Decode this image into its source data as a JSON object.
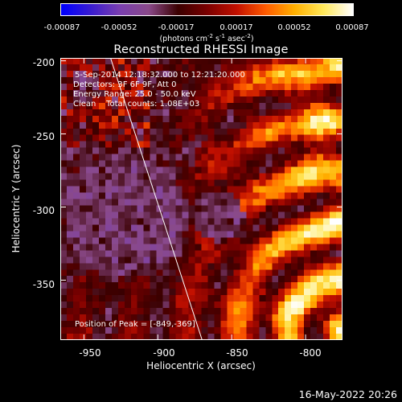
{
  "colorbar": {
    "tick_labels": [
      "-0.00087",
      "-0.00052",
      "-0.00017",
      "0.00017",
      "0.00052",
      "0.00087"
    ],
    "units_label": "(photons cm-2 s-1 asec-2)",
    "range": [
      -0.00087,
      0.00087
    ],
    "colormap": [
      "#0000ff",
      "#3a1cd0",
      "#7a3fb0",
      "#8a4a8a",
      "#3a0000",
      "#7a0000",
      "#c21000",
      "#ff5a00",
      "#ffb000",
      "#ffe85a",
      "#ffffff"
    ]
  },
  "title": "Reconstructed RHESSI Image",
  "info": {
    "time": "5-Sep-2014 12:18:32.000 to 12:21:20.000",
    "detectors": "Detectors: 3F 6F 9F, Att 0",
    "energy": "Energy Range: 25.0 - 50.0 keV",
    "clean": "Clean    Total counts: 1.08E+03",
    "peak": "Position of Peak = [-849,-369]"
  },
  "axes": {
    "xlabel": "Heliocentric X (arcsec)",
    "ylabel": "Heliocentric Y (arcsec)",
    "xlim": [
      -966,
      -775
    ],
    "ylim": [
      -391,
      -198
    ],
    "x_ticks": [
      "-950",
      "-900",
      "-850",
      "-800"
    ],
    "y_ticks": [
      "-200",
      "-250",
      "-300",
      "-350"
    ]
  },
  "limb_line": {
    "x": [
      -932,
      -870
    ],
    "y": [
      -198,
      -391
    ]
  },
  "footer_date": "16-May-2022 20:26"
}
